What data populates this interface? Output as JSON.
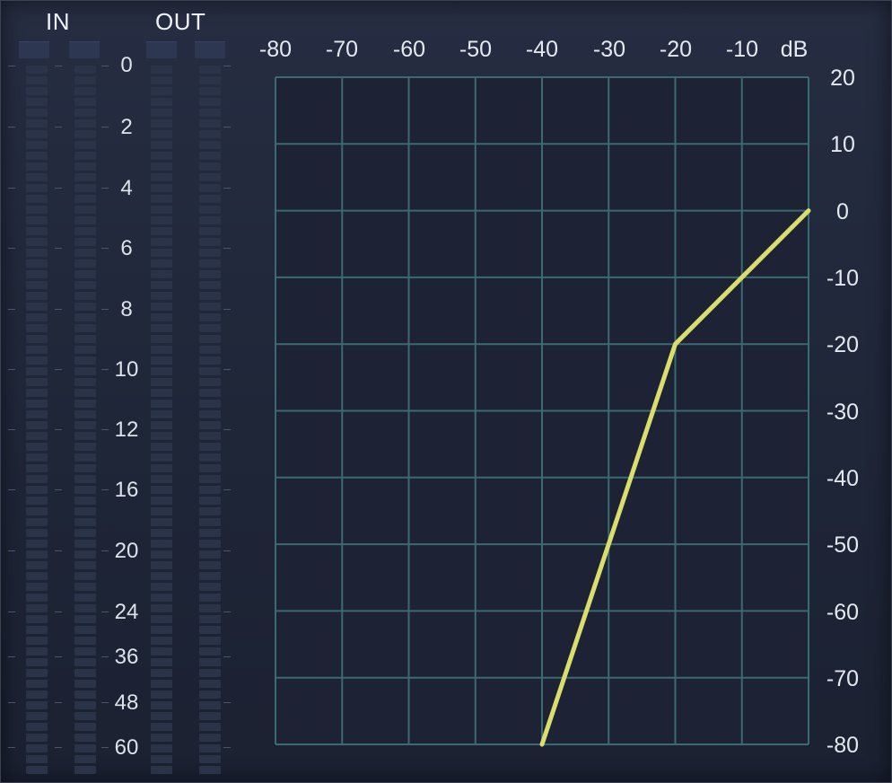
{
  "meters": {
    "in_label": "IN",
    "out_label": "OUT",
    "scale": [
      "0",
      "2",
      "4",
      "6",
      "8",
      "10",
      "12",
      "16",
      "20",
      "24",
      "36",
      "48",
      "60"
    ]
  },
  "graph": {
    "x_ticks": [
      "-80",
      "-70",
      "-60",
      "-50",
      "-40",
      "-30",
      "-20",
      "-10"
    ],
    "x_unit": "dB",
    "y_ticks": [
      "20",
      "10",
      "0",
      "-10",
      "-20",
      "-30",
      "-40",
      "-50",
      "-60",
      "-70",
      "-80"
    ],
    "curve_color": "#d9de6e",
    "grid_color": "#3a6a72",
    "transfer_curve": [
      {
        "input_db": -40,
        "output_db": -80
      },
      {
        "input_db": -20,
        "output_db": -20
      },
      {
        "input_db": 0,
        "output_db": 0
      }
    ]
  }
}
